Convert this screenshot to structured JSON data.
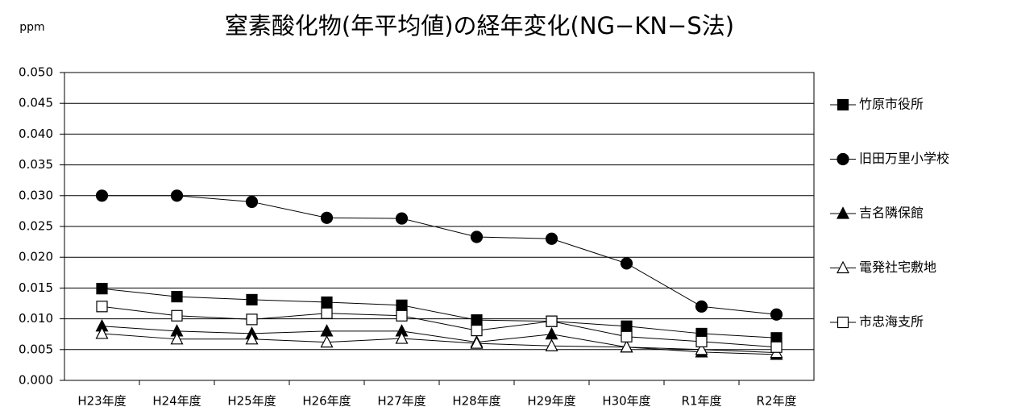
{
  "chart_data": {
    "type": "line",
    "title": "窒素酸化物(年平均値)の経年変化(NG−KN−S法)",
    "y_unit": "ppm",
    "categories": [
      "H23年度",
      "H24年度",
      "H25年度",
      "H26年度",
      "H27年度",
      "H28年度",
      "H29年度",
      "H30年度",
      "R1年度",
      "R2年度"
    ],
    "ylim": [
      0,
      0.05
    ],
    "yticks": [
      {
        "value": 0,
        "label": "0.000"
      },
      {
        "value": 0.005,
        "label": "0.005"
      },
      {
        "value": 0.01,
        "label": "0.010"
      },
      {
        "value": 0.015,
        "label": "0.015"
      },
      {
        "value": 0.02,
        "label": "0.020"
      },
      {
        "value": 0.025,
        "label": "0.025"
      },
      {
        "value": 0.03,
        "label": "0.030"
      },
      {
        "value": 0.035,
        "label": "0.035"
      },
      {
        "value": 0.04,
        "label": "0.040"
      },
      {
        "value": 0.045,
        "label": "0.045"
      },
      {
        "value": 0.05,
        "label": "0.050"
      }
    ],
    "grid": true,
    "legend": "right",
    "series": [
      {
        "name": "竹原市役所",
        "color": "#000000",
        "marker": "square",
        "marker_fill": "#000000",
        "values": [
          0.0149,
          0.0136,
          0.0131,
          0.0127,
          0.0122,
          0.0098,
          0.0096,
          0.0088,
          0.0076,
          0.0069
        ]
      },
      {
        "name": "旧田万里小学校",
        "color": "#000000",
        "marker": "circle",
        "marker_fill": "#000000",
        "values": [
          0.03,
          0.03,
          0.029,
          0.0264,
          0.0263,
          0.0233,
          0.023,
          0.019,
          0.012,
          0.0107
        ]
      },
      {
        "name": "吉名隣保館",
        "color": "#000000",
        "marker": "triangle",
        "marker_fill": "#000000",
        "values": [
          0.0088,
          0.008,
          0.0076,
          0.008,
          0.008,
          0.0062,
          0.0075,
          0.0054,
          0.0046,
          0.0042
        ]
      },
      {
        "name": "電発社宅敷地",
        "color": "#000000",
        "marker": "triangle",
        "marker_fill": "#ffffff",
        "values": [
          0.0076,
          0.0067,
          0.0067,
          0.0062,
          0.0068,
          0.006,
          0.0056,
          0.0054,
          0.005,
          0.0045
        ]
      },
      {
        "name": "市忠海支所",
        "color": "#000000",
        "marker": "square",
        "marker_fill": "#ffffff",
        "values": [
          0.012,
          0.0105,
          0.0099,
          0.0109,
          0.0105,
          0.0081,
          0.0096,
          0.0071,
          0.0063,
          0.0054
        ]
      }
    ]
  }
}
